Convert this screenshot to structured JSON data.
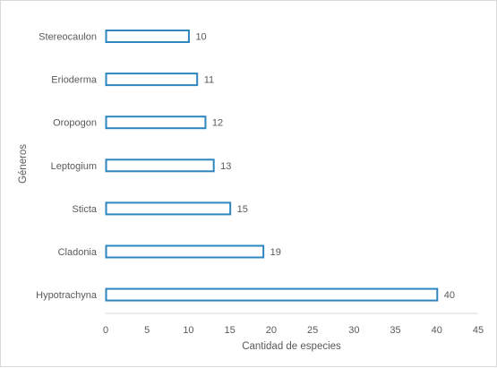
{
  "chart_data": {
    "type": "bar",
    "orientation": "horizontal",
    "categories": [
      "Stereocaulon",
      "Erioderma",
      "Oropogon",
      "Leptogium",
      "Sticta",
      "Cladonia",
      "Hypotrachyna"
    ],
    "values": [
      10,
      11,
      12,
      13,
      15,
      19,
      40
    ],
    "xlabel": "Cantidad de especies",
    "ylabel": "Géneros",
    "xlim": [
      0,
      45
    ],
    "xticks": [
      0,
      5,
      10,
      15,
      20,
      25,
      30,
      35,
      40,
      45
    ],
    "grid": false,
    "legend": "none",
    "bar_fill": "#ffffff",
    "bar_stroke": "#2e86c1",
    "axis_color": "#d9d9d9",
    "text_color": "#595959"
  }
}
